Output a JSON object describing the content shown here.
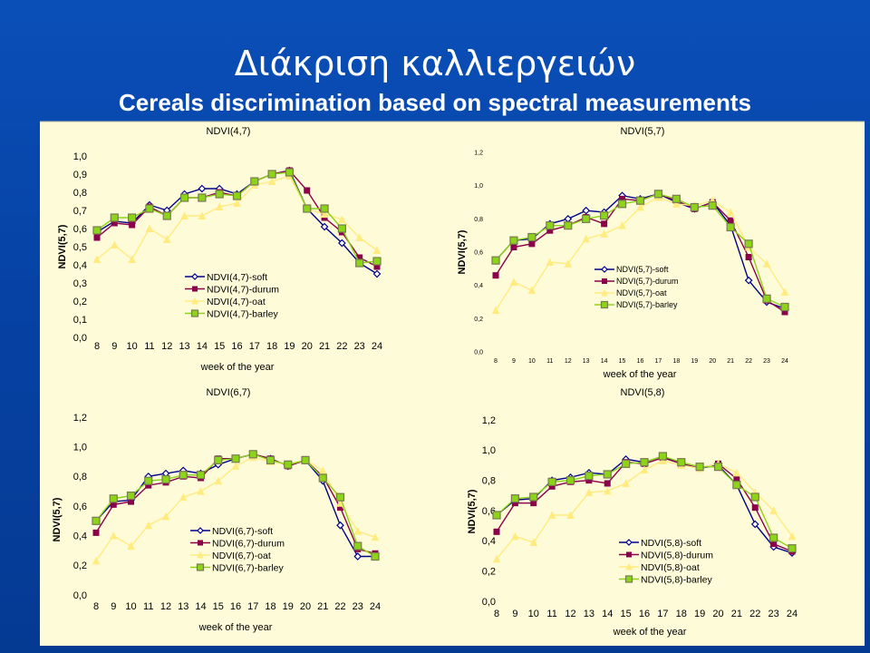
{
  "slide": {
    "title": "Διάκριση καλλιεργειών",
    "subtitle": "Cereals discrimination based on  spectral measurements"
  },
  "colors": {
    "background": "#0a4fb8",
    "panel": "#fefcd8",
    "soft": "#00008b",
    "durum": "#8b004b",
    "oat": "#ffeb80",
    "barley": "#8cd418"
  },
  "chart_data": [
    {
      "type": "line",
      "title": "NDVI(4,7)",
      "xlabel": "week of the year",
      "ylabel": "NDVI(5,7)",
      "x": [
        8,
        9,
        10,
        11,
        12,
        13,
        14,
        15,
        16,
        17,
        18,
        19,
        20,
        21,
        22,
        23,
        24
      ],
      "ylim": [
        0,
        1.0
      ],
      "yticks": [
        "0,0",
        "0,1",
        "0,2",
        "0,3",
        "0,4",
        "0,5",
        "0,6",
        "0,7",
        "0,8",
        "0,9",
        "1,0"
      ],
      "legend": "center",
      "series": [
        {
          "name": "NDVI(4,7)-soft",
          "values": [
            0.58,
            0.64,
            0.63,
            0.73,
            0.7,
            0.79,
            0.82,
            0.82,
            0.79,
            0.86,
            0.9,
            0.92,
            0.71,
            0.61,
            0.52,
            0.41,
            0.35
          ]
        },
        {
          "name": "NDVI(4,7)-durum",
          "values": [
            0.55,
            0.63,
            0.62,
            0.72,
            0.67,
            0.77,
            0.77,
            0.8,
            0.78,
            0.86,
            0.9,
            0.92,
            0.81,
            0.66,
            0.58,
            0.44,
            0.39
          ]
        },
        {
          "name": "NDVI(4,7)-oat",
          "values": [
            0.43,
            0.51,
            0.43,
            0.6,
            0.54,
            0.67,
            0.67,
            0.72,
            0.74,
            0.84,
            0.86,
            0.89,
            0.71,
            0.68,
            0.65,
            0.55,
            0.48
          ]
        },
        {
          "name": "NDVI(4,7)-barley",
          "values": [
            0.59,
            0.66,
            0.66,
            0.71,
            0.67,
            0.77,
            0.77,
            0.79,
            0.78,
            0.86,
            0.9,
            0.91,
            0.71,
            0.71,
            0.6,
            0.41,
            0.42
          ]
        }
      ]
    },
    {
      "type": "line",
      "title": "NDVI(5,7)",
      "xlabel": "week of the year",
      "ylabel": "NDVI(5,7)",
      "x": [
        8,
        9,
        10,
        11,
        12,
        13,
        14,
        15,
        16,
        17,
        18,
        19,
        20,
        21,
        22,
        23,
        24
      ],
      "ylim": [
        0,
        1.2
      ],
      "yticks": [
        "0,0",
        "0,2",
        "0,4",
        "0,6",
        "0,8",
        "1,0",
        "1,2"
      ],
      "legend": "right",
      "series": [
        {
          "name": "NDVI(5,7)-soft",
          "values": [
            0.55,
            0.67,
            0.68,
            0.77,
            0.8,
            0.85,
            0.84,
            0.94,
            0.92,
            0.95,
            0.9,
            0.86,
            0.9,
            0.76,
            0.43,
            0.3,
            0.26
          ]
        },
        {
          "name": "NDVI(5,7)-durum",
          "values": [
            0.46,
            0.63,
            0.65,
            0.73,
            0.76,
            0.81,
            0.77,
            0.92,
            0.91,
            0.95,
            0.91,
            0.86,
            0.9,
            0.79,
            0.57,
            0.31,
            0.24
          ]
        },
        {
          "name": "NDVI(5,7)-oat",
          "values": [
            0.25,
            0.42,
            0.37,
            0.54,
            0.53,
            0.68,
            0.71,
            0.76,
            0.87,
            0.93,
            0.89,
            0.88,
            0.91,
            0.84,
            0.63,
            0.53,
            0.36
          ]
        },
        {
          "name": "NDVI(5,7)-barley",
          "values": [
            0.55,
            0.67,
            0.69,
            0.76,
            0.76,
            0.8,
            0.82,
            0.89,
            0.91,
            0.95,
            0.92,
            0.87,
            0.88,
            0.75,
            0.65,
            0.32,
            0.27
          ]
        }
      ]
    },
    {
      "type": "line",
      "title": "NDVI(6,7)",
      "xlabel": "week of the year",
      "ylabel": "NDVI(5,7)",
      "x": [
        8,
        9,
        10,
        11,
        12,
        13,
        14,
        15,
        16,
        17,
        18,
        19,
        20,
        21,
        22,
        23,
        24
      ],
      "ylim": [
        0,
        1.2
      ],
      "yticks": [
        "0,0",
        "0,2",
        "0,4",
        "0,6",
        "0,8",
        "1,0",
        "1,2"
      ],
      "legend": "right",
      "series": [
        {
          "name": "NDVI(6,7)-soft",
          "values": [
            0.5,
            0.63,
            0.64,
            0.8,
            0.82,
            0.84,
            0.82,
            0.88,
            0.92,
            0.95,
            0.92,
            0.87,
            0.91,
            0.77,
            0.47,
            0.26,
            0.26
          ]
        },
        {
          "name": "NDVI(6,7)-durum",
          "values": [
            0.42,
            0.61,
            0.63,
            0.74,
            0.76,
            0.8,
            0.79,
            0.92,
            0.92,
            0.95,
            0.92,
            0.87,
            0.91,
            0.8,
            0.59,
            0.31,
            0.28
          ]
        },
        {
          "name": "NDVI(6,7)-oat",
          "values": [
            0.23,
            0.4,
            0.33,
            0.47,
            0.53,
            0.66,
            0.7,
            0.77,
            0.87,
            0.93,
            0.9,
            0.88,
            0.91,
            0.84,
            0.62,
            0.43,
            0.39
          ]
        },
        {
          "name": "NDVI(6,7)-barley",
          "values": [
            0.5,
            0.65,
            0.67,
            0.77,
            0.78,
            0.81,
            0.81,
            0.91,
            0.92,
            0.95,
            0.91,
            0.88,
            0.91,
            0.79,
            0.66,
            0.33,
            0.26
          ]
        }
      ]
    },
    {
      "type": "line",
      "title": "NDVI(5,8)",
      "xlabel": "week of the year",
      "ylabel": "NDVI(5,7)",
      "x": [
        8,
        9,
        10,
        11,
        12,
        13,
        14,
        15,
        16,
        17,
        18,
        19,
        20,
        21,
        22,
        23,
        24
      ],
      "ylim": [
        0,
        1.2
      ],
      "yticks": [
        "0,0",
        "0,2",
        "0,4",
        "0,6",
        "0,8",
        "1,0",
        "1,2"
      ],
      "legend": "right",
      "series": [
        {
          "name": "NDVI(5,8)-soft",
          "values": [
            0.57,
            0.67,
            0.68,
            0.8,
            0.82,
            0.85,
            0.84,
            0.94,
            0.92,
            0.96,
            0.91,
            0.88,
            0.9,
            0.77,
            0.51,
            0.36,
            0.32
          ]
        },
        {
          "name": "NDVI(5,8)-durum",
          "values": [
            0.46,
            0.65,
            0.65,
            0.76,
            0.79,
            0.8,
            0.78,
            0.92,
            0.91,
            0.95,
            0.91,
            0.88,
            0.91,
            0.81,
            0.62,
            0.38,
            0.33
          ]
        },
        {
          "name": "NDVI(5,8)-oat",
          "values": [
            0.28,
            0.43,
            0.39,
            0.57,
            0.57,
            0.72,
            0.73,
            0.78,
            0.87,
            0.93,
            0.9,
            0.88,
            0.91,
            0.85,
            0.72,
            0.6,
            0.43
          ]
        },
        {
          "name": "NDVI(5,8)-barley",
          "values": [
            0.57,
            0.68,
            0.69,
            0.79,
            0.8,
            0.83,
            0.84,
            0.91,
            0.92,
            0.96,
            0.92,
            0.89,
            0.89,
            0.77,
            0.69,
            0.42,
            0.35
          ]
        }
      ]
    }
  ]
}
